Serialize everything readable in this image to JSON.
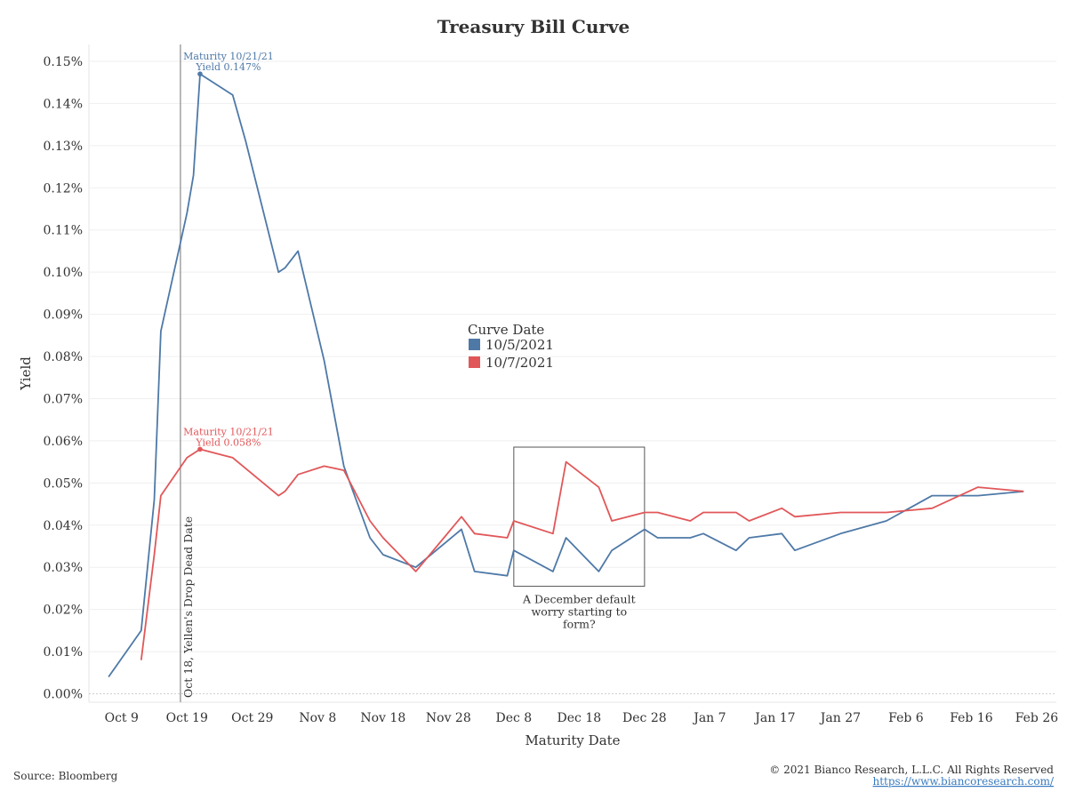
{
  "chart_data": {
    "type": "line",
    "title": "Treasury Bill Curve",
    "xlabel": "Maturity Date",
    "ylabel": "Yield",
    "x_ticks": [
      "Oct 9",
      "Oct 19",
      "Oct 29",
      "Nov 8",
      "Nov 18",
      "Nov 28",
      "Dec 8",
      "Dec 18",
      "Dec 28",
      "Jan 7",
      "Jan 17",
      "Jan 27",
      "Feb 6",
      "Feb 16",
      "Feb 26"
    ],
    "y_ticks": [
      "0.00%",
      "0.01%",
      "0.02%",
      "0.03%",
      "0.04%",
      "0.05%",
      "0.06%",
      "0.07%",
      "0.08%",
      "0.09%",
      "0.10%",
      "0.11%",
      "0.12%",
      "0.13%",
      "0.14%",
      "0.15%"
    ],
    "xlim": [
      "2021-10-04",
      "2022-03-01"
    ],
    "ylim": [
      -0.002,
      0.154
    ],
    "grid": true,
    "legend": {
      "title": "Curve Date",
      "placement": "center"
    },
    "series": [
      {
        "name": "10/5/2021",
        "color": "#4e79a7",
        "points": [
          [
            "2021-10-07",
            0.004
          ],
          [
            "2021-10-12",
            0.015
          ],
          [
            "2021-10-14",
            0.046
          ],
          [
            "2021-10-15",
            0.086
          ],
          [
            "2021-10-19",
            0.114
          ],
          [
            "2021-10-20",
            0.123
          ],
          [
            "2021-10-21",
            0.147
          ],
          [
            "2021-10-26",
            0.142
          ],
          [
            "2021-10-28",
            0.131
          ],
          [
            "2021-11-02",
            0.1
          ],
          [
            "2021-11-03",
            0.101
          ],
          [
            "2021-11-05",
            0.105
          ],
          [
            "2021-11-09",
            0.079
          ],
          [
            "2021-11-12",
            0.054
          ],
          [
            "2021-11-16",
            0.037
          ],
          [
            "2021-11-18",
            0.033
          ],
          [
            "2021-11-23",
            0.03
          ],
          [
            "2021-11-30",
            0.039
          ],
          [
            "2021-12-02",
            0.029
          ],
          [
            "2021-12-07",
            0.028
          ],
          [
            "2021-12-08",
            0.034
          ],
          [
            "2021-12-14",
            0.029
          ],
          [
            "2021-12-16",
            0.037
          ],
          [
            "2021-12-21",
            0.029
          ],
          [
            "2021-12-23",
            0.034
          ],
          [
            "2021-12-28",
            0.039
          ],
          [
            "2021-12-30",
            0.037
          ],
          [
            "2022-01-04",
            0.037
          ],
          [
            "2022-01-06",
            0.038
          ],
          [
            "2022-01-11",
            0.034
          ],
          [
            "2022-01-13",
            0.037
          ],
          [
            "2022-01-18",
            0.038
          ],
          [
            "2022-01-20",
            0.034
          ],
          [
            "2022-01-27",
            0.038
          ],
          [
            "2022-02-03",
            0.041
          ],
          [
            "2022-02-10",
            0.047
          ],
          [
            "2022-02-17",
            0.047
          ],
          [
            "2022-02-24",
            0.048
          ]
        ]
      },
      {
        "name": "10/7/2021",
        "color": "#e15759",
        "points": [
          [
            "2021-10-12",
            0.008
          ],
          [
            "2021-10-14",
            0.033
          ],
          [
            "2021-10-15",
            0.047
          ],
          [
            "2021-10-19",
            0.056
          ],
          [
            "2021-10-21",
            0.058
          ],
          [
            "2021-10-26",
            0.056
          ],
          [
            "2021-11-02",
            0.047
          ],
          [
            "2021-11-03",
            0.048
          ],
          [
            "2021-11-05",
            0.052
          ],
          [
            "2021-11-09",
            0.054
          ],
          [
            "2021-11-12",
            0.053
          ],
          [
            "2021-11-16",
            0.041
          ],
          [
            "2021-11-18",
            0.037
          ],
          [
            "2021-11-23",
            0.029
          ],
          [
            "2021-11-30",
            0.042
          ],
          [
            "2021-12-02",
            0.038
          ],
          [
            "2021-12-07",
            0.037
          ],
          [
            "2021-12-08",
            0.041
          ],
          [
            "2021-12-14",
            0.038
          ],
          [
            "2021-12-16",
            0.055
          ],
          [
            "2021-12-21",
            0.049
          ],
          [
            "2021-12-23",
            0.041
          ],
          [
            "2021-12-28",
            0.043
          ],
          [
            "2021-12-30",
            0.043
          ],
          [
            "2022-01-04",
            0.041
          ],
          [
            "2022-01-06",
            0.043
          ],
          [
            "2022-01-11",
            0.043
          ],
          [
            "2022-01-13",
            0.041
          ],
          [
            "2022-01-18",
            0.044
          ],
          [
            "2022-01-20",
            0.042
          ],
          [
            "2022-01-27",
            0.043
          ],
          [
            "2022-02-03",
            0.043
          ],
          [
            "2022-02-10",
            0.044
          ],
          [
            "2022-02-17",
            0.049
          ],
          [
            "2022-02-24",
            0.048
          ]
        ]
      }
    ],
    "annotations": {
      "series1_peak": {
        "x": "2021-10-21",
        "y": 0.147,
        "line1": "Maturity 10/21/21",
        "line2": "Yield 0.147%"
      },
      "series2_peak": {
        "x": "2021-10-21",
        "y": 0.058,
        "line1": "Maturity 10/21/21",
        "line2": "Yield 0.058%"
      },
      "reference_line": {
        "x": "2021-10-18",
        "label": "Oct 18, Yellen's Drop Dead Date"
      },
      "highlight_box": {
        "x_range": [
          "2021-12-08",
          "2021-12-28"
        ],
        "y_range": [
          0.0255,
          0.0585
        ],
        "lines": [
          "A December default",
          "worry starting to",
          "form?"
        ]
      }
    }
  },
  "footer": {
    "source": "Source: Bloomberg",
    "copyright": "© 2021 Bianco Research, L.L.C. All Rights Reserved",
    "url": "https://www.biancoresearch.com/"
  }
}
